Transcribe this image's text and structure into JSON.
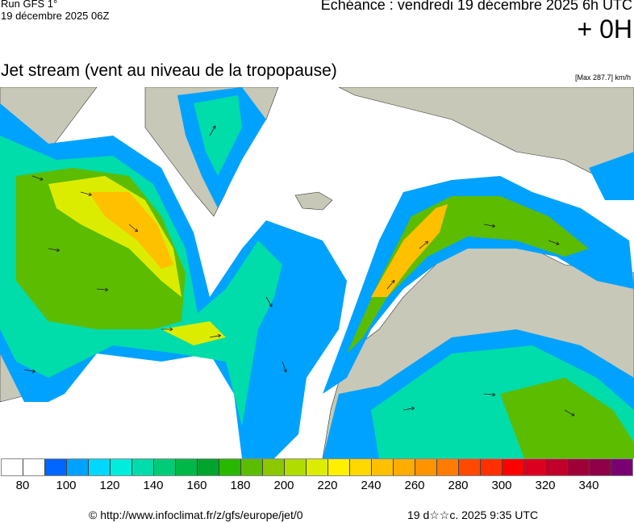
{
  "header": {
    "run": "Run GFS 1°",
    "run_date": "19 décembre 2025 06Z",
    "echeance": "Echéance : vendredi 19 décembre 2025 6h UTC",
    "offset": "+ 0H",
    "title": "Jet stream (vent au niveau de la tropopause)",
    "max": "[Max 287.7] km/h"
  },
  "legend": {
    "colors": [
      "#ffffff",
      "#ffffff",
      "#0066ff",
      "#00a2ff",
      "#00d8ff",
      "#00ecdc",
      "#00dcaa",
      "#00cc78",
      "#00b848",
      "#00a42e",
      "#28b800",
      "#5cbc00",
      "#8cc800",
      "#b0dc00",
      "#dcec00",
      "#fff000",
      "#ffd800",
      "#ffc000",
      "#ffac00",
      "#ff9400",
      "#ff7c00",
      "#ff4800",
      "#ff3000",
      "#ff0000",
      "#dc0020",
      "#c00028",
      "#a00038",
      "#900048",
      "#780070"
    ],
    "ticks": [
      "80",
      "100",
      "120",
      "140",
      "160",
      "180",
      "200",
      "220",
      "240",
      "260",
      "280",
      "300",
      "320",
      "340"
    ]
  },
  "footer": {
    "copyright": "© http://www.infoclimat.fr/z/gfs/europe/jet/0",
    "generated": "19 d☆☆c. 2025  9:35 UTC"
  },
  "map": {
    "land_color": "#c8c8b8",
    "ocean_color": "#ffffff"
  }
}
